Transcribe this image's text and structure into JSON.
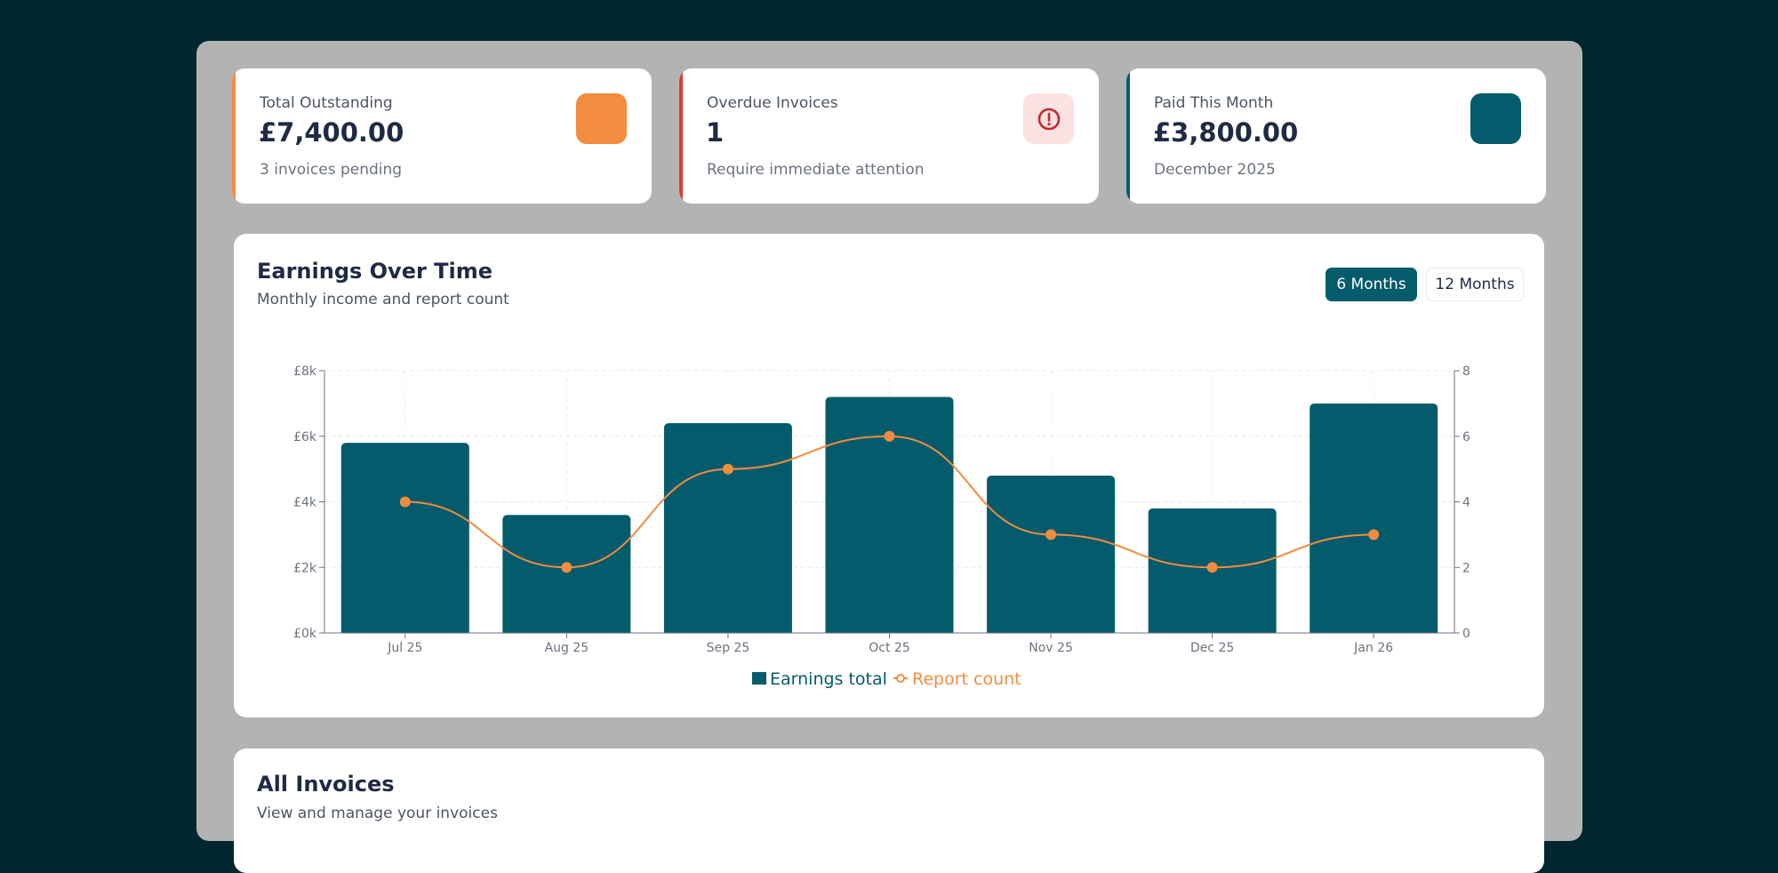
{
  "stats": [
    {
      "label": "Total Outstanding",
      "value": "£7,400.00",
      "sub": "3 invoices pending",
      "accent": "#f28c3e",
      "icon": "wallet-icon",
      "icon_bg": "#f28c3e"
    },
    {
      "label": "Overdue Invoices",
      "value": "1",
      "sub": "Require immediate attention",
      "accent": "#e53935",
      "icon": "alert-circle-icon",
      "icon_bg": "#fde2e2",
      "icon_color": "#c62828"
    },
    {
      "label": "Paid This Month",
      "value": "£3,800.00",
      "sub": "December 2025",
      "accent": "#045b6c",
      "icon": "check-icon",
      "icon_bg": "#045b6c"
    }
  ],
  "earnings": {
    "title": "Earnings Over Time",
    "subtitle": "Monthly income and report count",
    "range_buttons": [
      "6 Months",
      "12 Months"
    ],
    "active_range": "6 Months"
  },
  "invoices": {
    "title": "All Invoices",
    "subtitle": "View and manage your invoices"
  },
  "chart_data": {
    "type": "bar",
    "categories": [
      "Jul 25",
      "Aug 25",
      "Sep 25",
      "Oct 25",
      "Nov 25",
      "Dec 25",
      "Jan 26"
    ],
    "series": [
      {
        "name": "Earnings total",
        "type": "bar",
        "axis": "left",
        "color": "#045b6c",
        "values": [
          5800,
          3600,
          6400,
          7200,
          4800,
          3800,
          7000
        ]
      },
      {
        "name": "Report count",
        "type": "line",
        "axis": "right",
        "color": "#f28c3e",
        "values": [
          4,
          2,
          5,
          6,
          3,
          2,
          3
        ]
      }
    ],
    "y_left": {
      "ylim": [
        0,
        8000
      ],
      "ticks": [
        0,
        2000,
        4000,
        6000,
        8000
      ],
      "tick_labels": [
        "£0k",
        "£2k",
        "£4k",
        "£6k",
        "£8k"
      ]
    },
    "y_right": {
      "ylim": [
        0,
        8
      ],
      "ticks": [
        0,
        2,
        4,
        6,
        8
      ],
      "tick_labels": [
        "0",
        "2",
        "4",
        "6",
        "8"
      ]
    },
    "grid": true,
    "legend": "bottom-center"
  }
}
